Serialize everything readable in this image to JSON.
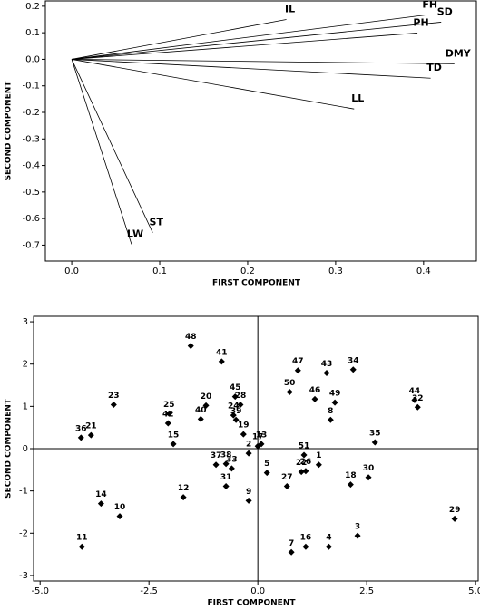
{
  "chart_data": [
    {
      "type": "vector",
      "xlabel": "FIRST COMPONENT",
      "ylabel": "SECOND COMPONENT",
      "labels": [
        "IL",
        "FH",
        "SD",
        "PH",
        "DMY",
        "TD",
        "LL",
        "ST",
        "LW"
      ],
      "x": [
        0.244,
        0.403,
        0.42,
        0.393,
        0.435,
        0.408,
        0.321,
        0.092,
        0.068
      ],
      "y": [
        0.15,
        0.167,
        0.14,
        0.099,
        -0.017,
        -0.071,
        -0.187,
        -0.653,
        -0.697
      ],
      "color": "#000000",
      "xlim": [
        -0.03,
        0.46
      ],
      "xticks": [
        {
          "value": 0,
          "label": "0.0"
        },
        0.1,
        0.2,
        0.3,
        0.4
      ],
      "ylim": [
        -0.76,
        0.22
      ],
      "yticks": [
        0.2,
        0.1,
        {
          "value": 0,
          "label": "0.0"
        },
        -0.1,
        -0.2,
        -0.3,
        -0.4,
        -0.5,
        -0.6,
        -0.7
      ]
    },
    {
      "type": "scatter",
      "xlabel": "FIRST COMPONENT",
      "ylabel": "SECOND COMPONENT",
      "labels": [
        "48",
        "41",
        "47",
        "43",
        "34",
        "50",
        "45",
        "28",
        "46",
        "49",
        "44",
        "32",
        "23",
        "20",
        "25",
        "42",
        "40",
        "24",
        "39",
        "19",
        "15",
        "36",
        "21",
        "17",
        "13",
        "2",
        "37",
        "38",
        "33",
        "31",
        "5",
        "51",
        "1",
        "22",
        "26",
        "27",
        "18",
        "30",
        "35",
        "8",
        "9",
        "12",
        "14",
        "10",
        "11",
        "7",
        "16",
        "4",
        "3",
        "29"
      ],
      "x": [
        -1.54,
        -0.83,
        0.92,
        1.58,
        2.19,
        0.73,
        -0.52,
        -0.4,
        1.31,
        1.77,
        3.6,
        3.67,
        -3.31,
        -1.19,
        -2.04,
        -2.06,
        -1.31,
        -0.56,
        -0.5,
        -0.33,
        -1.94,
        -4.06,
        -3.83,
        0,
        0.08,
        -0.21,
        -0.96,
        -0.73,
        -0.6,
        -0.73,
        0.21,
        1.06,
        1.4,
        1.0,
        1.1,
        0.67,
        2.13,
        2.54,
        2.69,
        1.67,
        -0.21,
        -1.71,
        -3.6,
        -3.17,
        -4.04,
        0.77,
        1.1,
        1.63,
        2.29,
        4.52
      ],
      "y": [
        2.43,
        2.06,
        1.85,
        1.79,
        1.87,
        1.34,
        1.23,
        1.04,
        1.17,
        1.09,
        1.15,
        0.98,
        1.04,
        1.02,
        0.83,
        0.6,
        0.7,
        0.79,
        0.68,
        0.34,
        0.11,
        0.26,
        0.32,
        0.06,
        0.11,
        -0.11,
        -0.38,
        -0.36,
        -0.47,
        -0.89,
        -0.57,
        -0.15,
        -0.38,
        -0.55,
        -0.53,
        -0.89,
        -0.85,
        -0.68,
        0.15,
        0.68,
        -1.23,
        -1.15,
        -1.3,
        -1.6,
        -2.32,
        -2.45,
        -2.32,
        -2.32,
        -2.06,
        -1.66
      ],
      "color": "#000000",
      "xlim": [
        -5.15,
        5.06
      ],
      "xticks": [
        {
          "value": -5,
          "label": "-5.0"
        },
        -2.5,
        {
          "value": 0,
          "label": "0.0"
        },
        2.5,
        {
          "value": 5,
          "label": "5.0"
        }
      ],
      "ylim": [
        -3.13,
        3.13
      ],
      "yticks": [
        3,
        2,
        1,
        0,
        -1,
        -2,
        -3
      ]
    }
  ]
}
